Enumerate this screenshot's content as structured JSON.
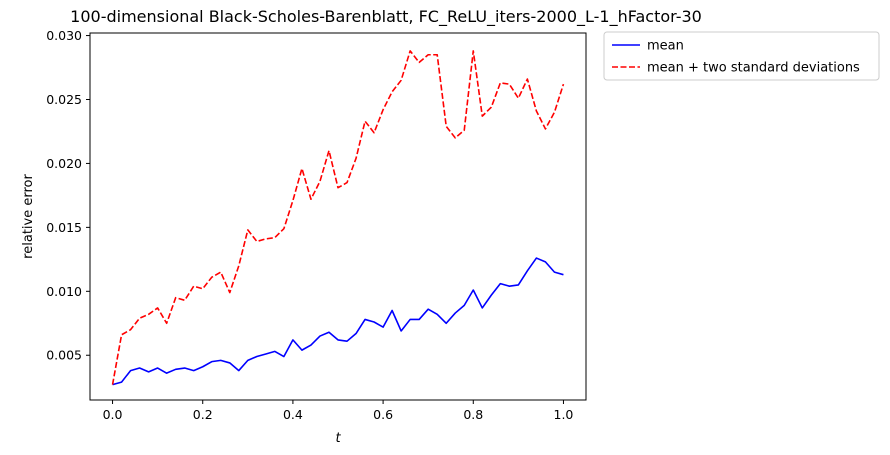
{
  "chart_data": {
    "type": "line",
    "title": "100-dimensional Black-Scholes-Barenblatt, FC_ReLU_iters-2000_L-1_hFactor-30",
    "xlabel": "t",
    "ylabel": "relative error",
    "xlim": [
      -0.05,
      1.05
    ],
    "ylim": [
      0.0015,
      0.0302
    ],
    "xticks": [
      0.0,
      0.2,
      0.4,
      0.6,
      0.8,
      1.0
    ],
    "xtick_labels": [
      "0.0",
      "0.2",
      "0.4",
      "0.6",
      "0.8",
      "1.0"
    ],
    "yticks": [
      0.005,
      0.01,
      0.015,
      0.02,
      0.025,
      0.03
    ],
    "ytick_labels": [
      "0.005",
      "0.010",
      "0.015",
      "0.020",
      "0.025",
      "0.030"
    ],
    "grid": false,
    "legend_position": "outside-top-right",
    "x": [
      0.0,
      0.02,
      0.04,
      0.06,
      0.08,
      0.1,
      0.12,
      0.14,
      0.16,
      0.18,
      0.2,
      0.22,
      0.24,
      0.26,
      0.28,
      0.3,
      0.32,
      0.34,
      0.36,
      0.38,
      0.4,
      0.42,
      0.44,
      0.46,
      0.48,
      0.5,
      0.52,
      0.54,
      0.56,
      0.58,
      0.6,
      0.62,
      0.64,
      0.66,
      0.68,
      0.7,
      0.72,
      0.74,
      0.76,
      0.78,
      0.8,
      0.82,
      0.84,
      0.86,
      0.88,
      0.9,
      0.92,
      0.94,
      0.96,
      0.98,
      1.0
    ],
    "series": [
      {
        "name": "mean",
        "color": "#0000ff",
        "style": "solid",
        "values": [
          0.0027,
          0.0029,
          0.0038,
          0.004,
          0.0037,
          0.004,
          0.0036,
          0.0039,
          0.004,
          0.0038,
          0.0041,
          0.0045,
          0.0046,
          0.0044,
          0.0038,
          0.0046,
          0.0049,
          0.0051,
          0.0053,
          0.0049,
          0.0062,
          0.0054,
          0.0058,
          0.0065,
          0.0068,
          0.0062,
          0.0061,
          0.0067,
          0.0078,
          0.0076,
          0.0072,
          0.0085,
          0.0069,
          0.0078,
          0.0078,
          0.0086,
          0.0082,
          0.0075,
          0.0083,
          0.0089,
          0.0101,
          0.0087,
          0.0097,
          0.0106,
          0.0104,
          0.0105,
          0.0116,
          0.0126,
          0.0123,
          0.0115,
          0.0113
        ]
      },
      {
        "name": "mean + two standard deviations",
        "color": "#ff0000",
        "style": "dashed",
        "values": [
          0.0027,
          0.0066,
          0.007,
          0.0079,
          0.0082,
          0.0087,
          0.0075,
          0.0095,
          0.0093,
          0.0104,
          0.0102,
          0.0111,
          0.0115,
          0.0099,
          0.012,
          0.0148,
          0.0139,
          0.0141,
          0.0142,
          0.0149,
          0.0171,
          0.0196,
          0.0172,
          0.0186,
          0.021,
          0.0181,
          0.0185,
          0.0204,
          0.0233,
          0.0224,
          0.0242,
          0.0256,
          0.0265,
          0.0288,
          0.0279,
          0.0285,
          0.0285,
          0.0229,
          0.022,
          0.0226,
          0.0288,
          0.0237,
          0.0244,
          0.0263,
          0.0262,
          0.0251,
          0.0266,
          0.0241,
          0.0227,
          0.024,
          0.0262
        ]
      }
    ]
  }
}
